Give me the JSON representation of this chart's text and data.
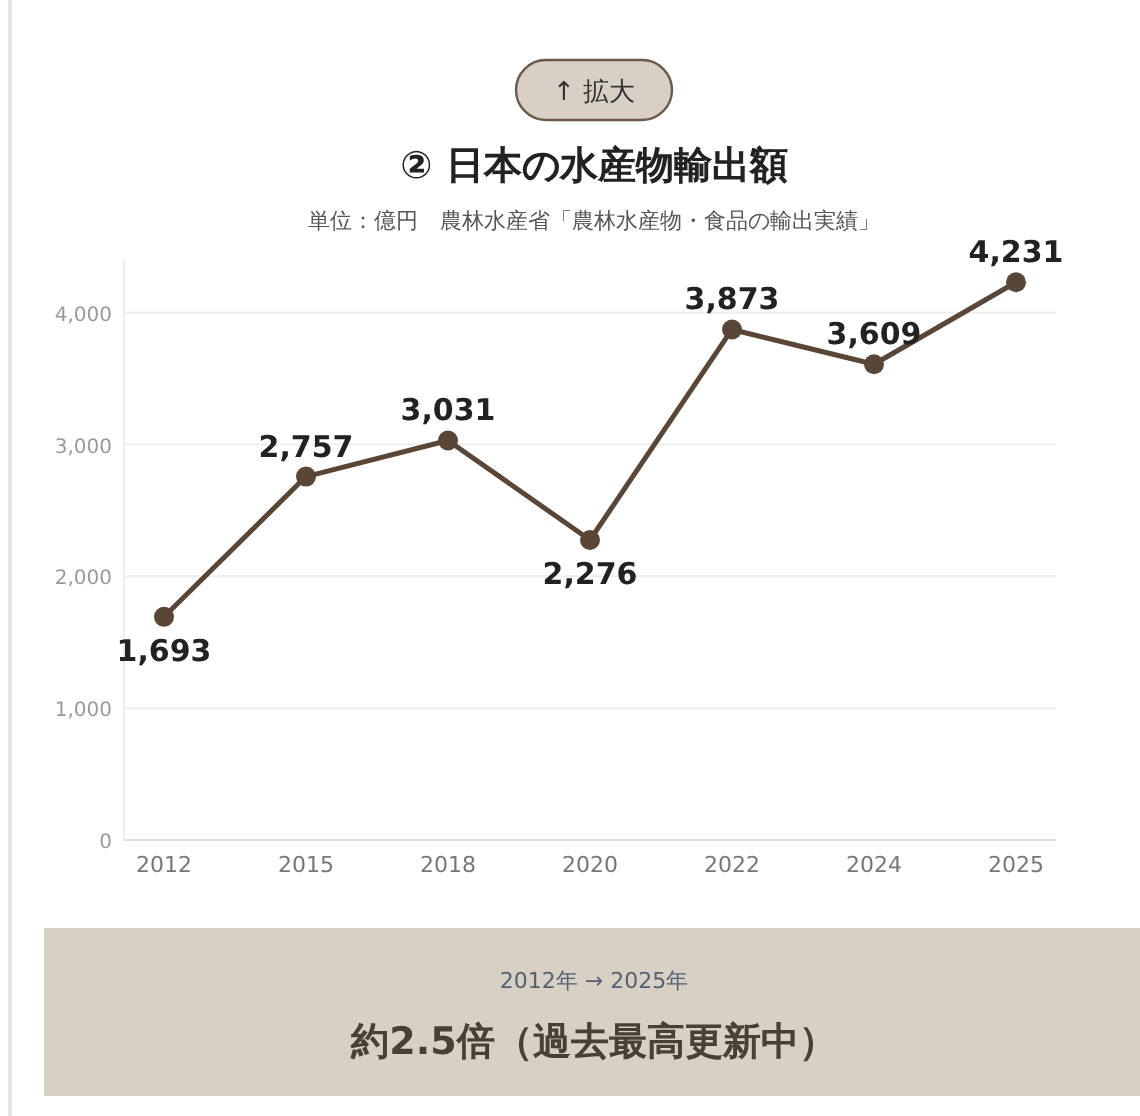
{
  "chart_data": {
    "type": "line",
    "title": "② 日本の水産物輸出額",
    "subtitle": "単位：億円　農林水産省「農林水産物・食品の輸出実績」",
    "annotations": [
      "↑ 拡大",
      "2012年 → 2025年",
      "約2.5倍（過去最高更新中）"
    ],
    "categories": [
      "2012",
      "2015",
      "2018",
      "2020",
      "2022",
      "2024",
      "2025"
    ],
    "series": [
      {
        "color": "#5a4636",
        "values": [
          1693,
          2757,
          3031,
          2276,
          3873,
          3609,
          4231
        ],
        "value_labels": [
          "1,693",
          "2,757",
          "3,031",
          "2,276",
          "3,873",
          "3,609",
          "4,231"
        ]
      }
    ],
    "ylim": [
      0,
      4400
    ],
    "yticks": [
      0,
      {
        "value": 1000,
        "label": "1,000"
      },
      {
        "value": 2000,
        "label": "2,000"
      },
      {
        "value": 3000,
        "label": "3,000"
      },
      {
        "value": 4000,
        "label": "4,000"
      }
    ],
    "grid": "y",
    "marker": "circle",
    "line_style": "solid"
  }
}
